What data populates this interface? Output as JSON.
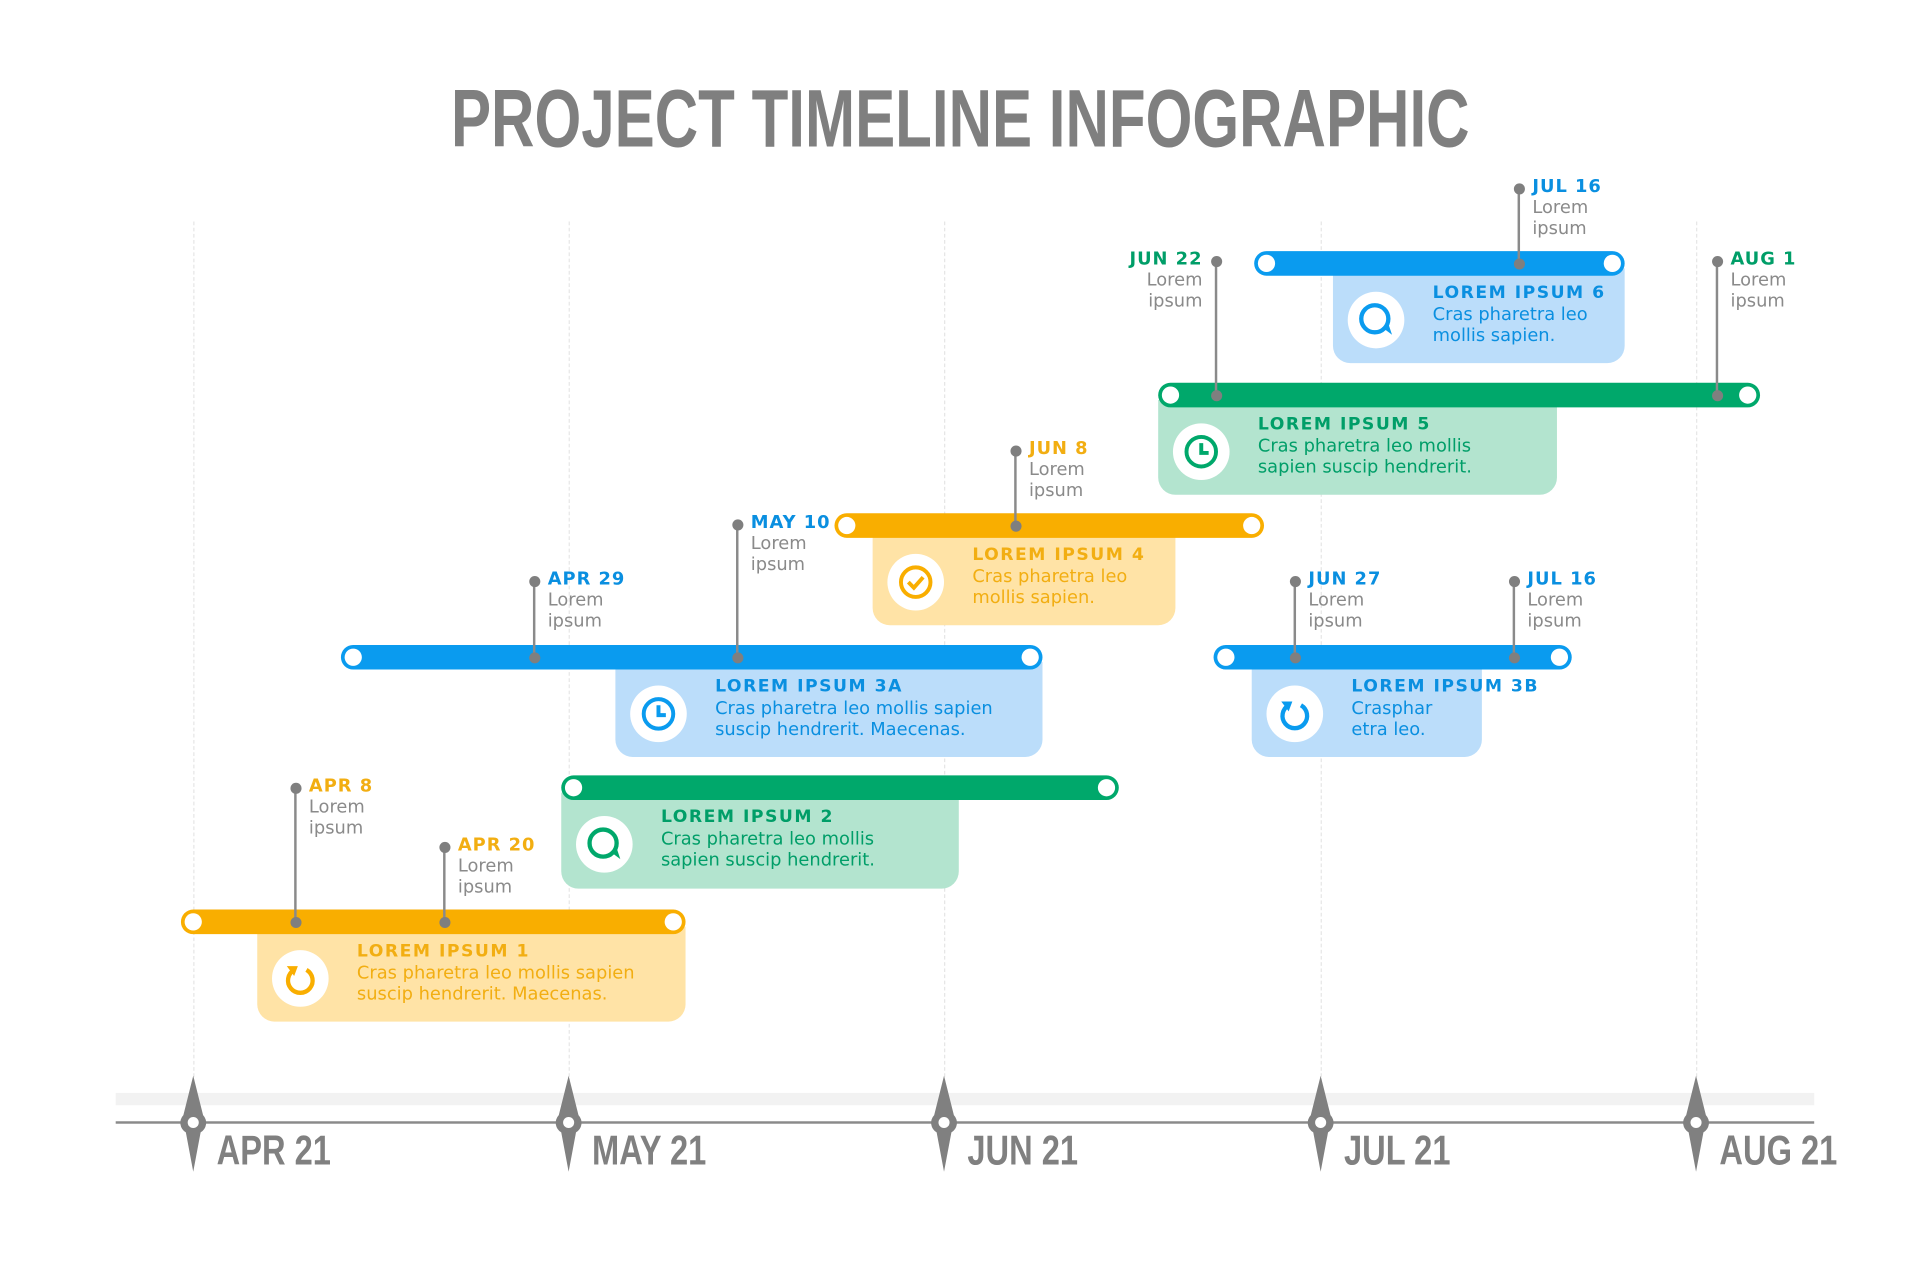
{
  "title": "PROJECT TIMELINE INFOGRAPHIC",
  "axis": {
    "color": "#808080",
    "labels": [
      "APR 21",
      "MAY 21",
      "JUN 21",
      "JUL 21",
      "AUG 21"
    ]
  },
  "colors": {
    "yellow": {
      "bar": "#F9AE00",
      "card": "#FFE3A6",
      "text": "#F2AE12"
    },
    "green": {
      "bar": "#00A86B",
      "card": "#B3E4CF",
      "text": "#009E68"
    },
    "blue": {
      "bar": "#0A9BEF",
      "card": "#BBDDFA",
      "text": "#0A8FE0"
    }
  },
  "tasks": [
    {
      "title": "LOREM IPSUM 1",
      "desc": [
        "Cras pharetra leo mollis sapien",
        "suscip hendrerit. Maecenas."
      ],
      "color": "yellow",
      "icon": "refresh-icon",
      "milestones": [
        {
          "date": "APR 8",
          "note": [
            "Lorem",
            "ipsum"
          ]
        },
        {
          "date": "APR 20",
          "note": [
            "Lorem",
            "ipsum"
          ]
        }
      ]
    },
    {
      "title": "LOREM IPSUM 2",
      "desc": [
        "Cras pharetra leo mollis",
        "sapien suscip hendrerit."
      ],
      "color": "green",
      "icon": "chat-bubble-icon",
      "milestones": []
    },
    {
      "title": "LOREM IPSUM 3A",
      "desc": [
        "Cras pharetra leo mollis sapien",
        "suscip hendrerit. Maecenas."
      ],
      "color": "blue",
      "icon": "clock-icon",
      "milestones": [
        {
          "date": "APR 29",
          "note": [
            "Lorem",
            "ipsum"
          ]
        },
        {
          "date": "MAY 10",
          "note": [
            "Lorem",
            "ipsum"
          ]
        }
      ]
    },
    {
      "title": "LOREM IPSUM 4",
      "desc": [
        "Cras pharetra leo",
        "mollis sapien."
      ],
      "color": "yellow",
      "icon": "check-circle-icon",
      "milestones": [
        {
          "date": "JUN 8",
          "note": [
            "Lorem",
            "ipsum"
          ]
        }
      ]
    },
    {
      "title": "LOREM IPSUM 3B",
      "desc": [
        "Crasphar",
        "etra leo."
      ],
      "color": "blue",
      "icon": "refresh-icon",
      "milestones": [
        {
          "date": "JUN 27",
          "note": [
            "Lorem",
            "ipsum"
          ]
        },
        {
          "date": "JUL 16",
          "note": [
            "Lorem",
            "ipsum"
          ]
        }
      ]
    },
    {
      "title": "LOREM IPSUM 5",
      "desc": [
        "Cras pharetra leo mollis",
        "sapien suscip hendrerit."
      ],
      "color": "green",
      "icon": "clock-icon",
      "milestones": [
        {
          "date": "JUN 22",
          "note": [
            "Lorem",
            "ipsum"
          ]
        },
        {
          "date": "AUG 1",
          "note": [
            "Lorem",
            "ipsum"
          ]
        }
      ]
    },
    {
      "title": "LOREM IPSUM 6",
      "desc": [
        "Cras pharetra leo",
        "mollis sapien."
      ],
      "color": "blue",
      "icon": "chat-bubble-icon",
      "milestones": [
        {
          "date": "JUL 16",
          "note": [
            "Lorem",
            "ipsum"
          ]
        }
      ]
    }
  ]
}
